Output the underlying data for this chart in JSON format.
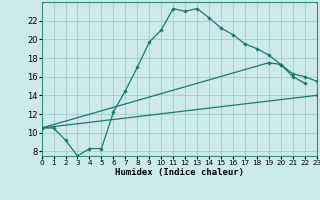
{
  "xlabel": "Humidex (Indice chaleur)",
  "bg_color": "#cce9ec",
  "grid_color": "#aacfd4",
  "line_color": "#1a7a6e",
  "line1_x": [
    0,
    1,
    2,
    3,
    4,
    5,
    6,
    7,
    8,
    9,
    10,
    11,
    12,
    13,
    14,
    15,
    16,
    17,
    18,
    19,
    20,
    21,
    22
  ],
  "line1_y": [
    10.5,
    10.5,
    9.2,
    7.5,
    8.3,
    8.3,
    12.2,
    14.5,
    17.0,
    19.7,
    21.0,
    23.3,
    23.0,
    23.3,
    22.3,
    21.2,
    20.5,
    19.5,
    19.0,
    18.3,
    17.3,
    16.0,
    15.3
  ],
  "line2_x": [
    0,
    19,
    20,
    21,
    22,
    23
  ],
  "line2_y": [
    10.5,
    17.5,
    17.3,
    16.3,
    16.0,
    15.5
  ],
  "line3_x": [
    0,
    23
  ],
  "line3_y": [
    10.5,
    14.0
  ],
  "xlim": [
    0,
    23
  ],
  "ylim": [
    7.5,
    24
  ],
  "yticks": [
    8,
    10,
    12,
    14,
    16,
    18,
    20,
    22
  ],
  "xticks": [
    0,
    1,
    2,
    3,
    4,
    5,
    6,
    7,
    8,
    9,
    10,
    11,
    12,
    13,
    14,
    15,
    16,
    17,
    18,
    19,
    20,
    21,
    22,
    23
  ]
}
